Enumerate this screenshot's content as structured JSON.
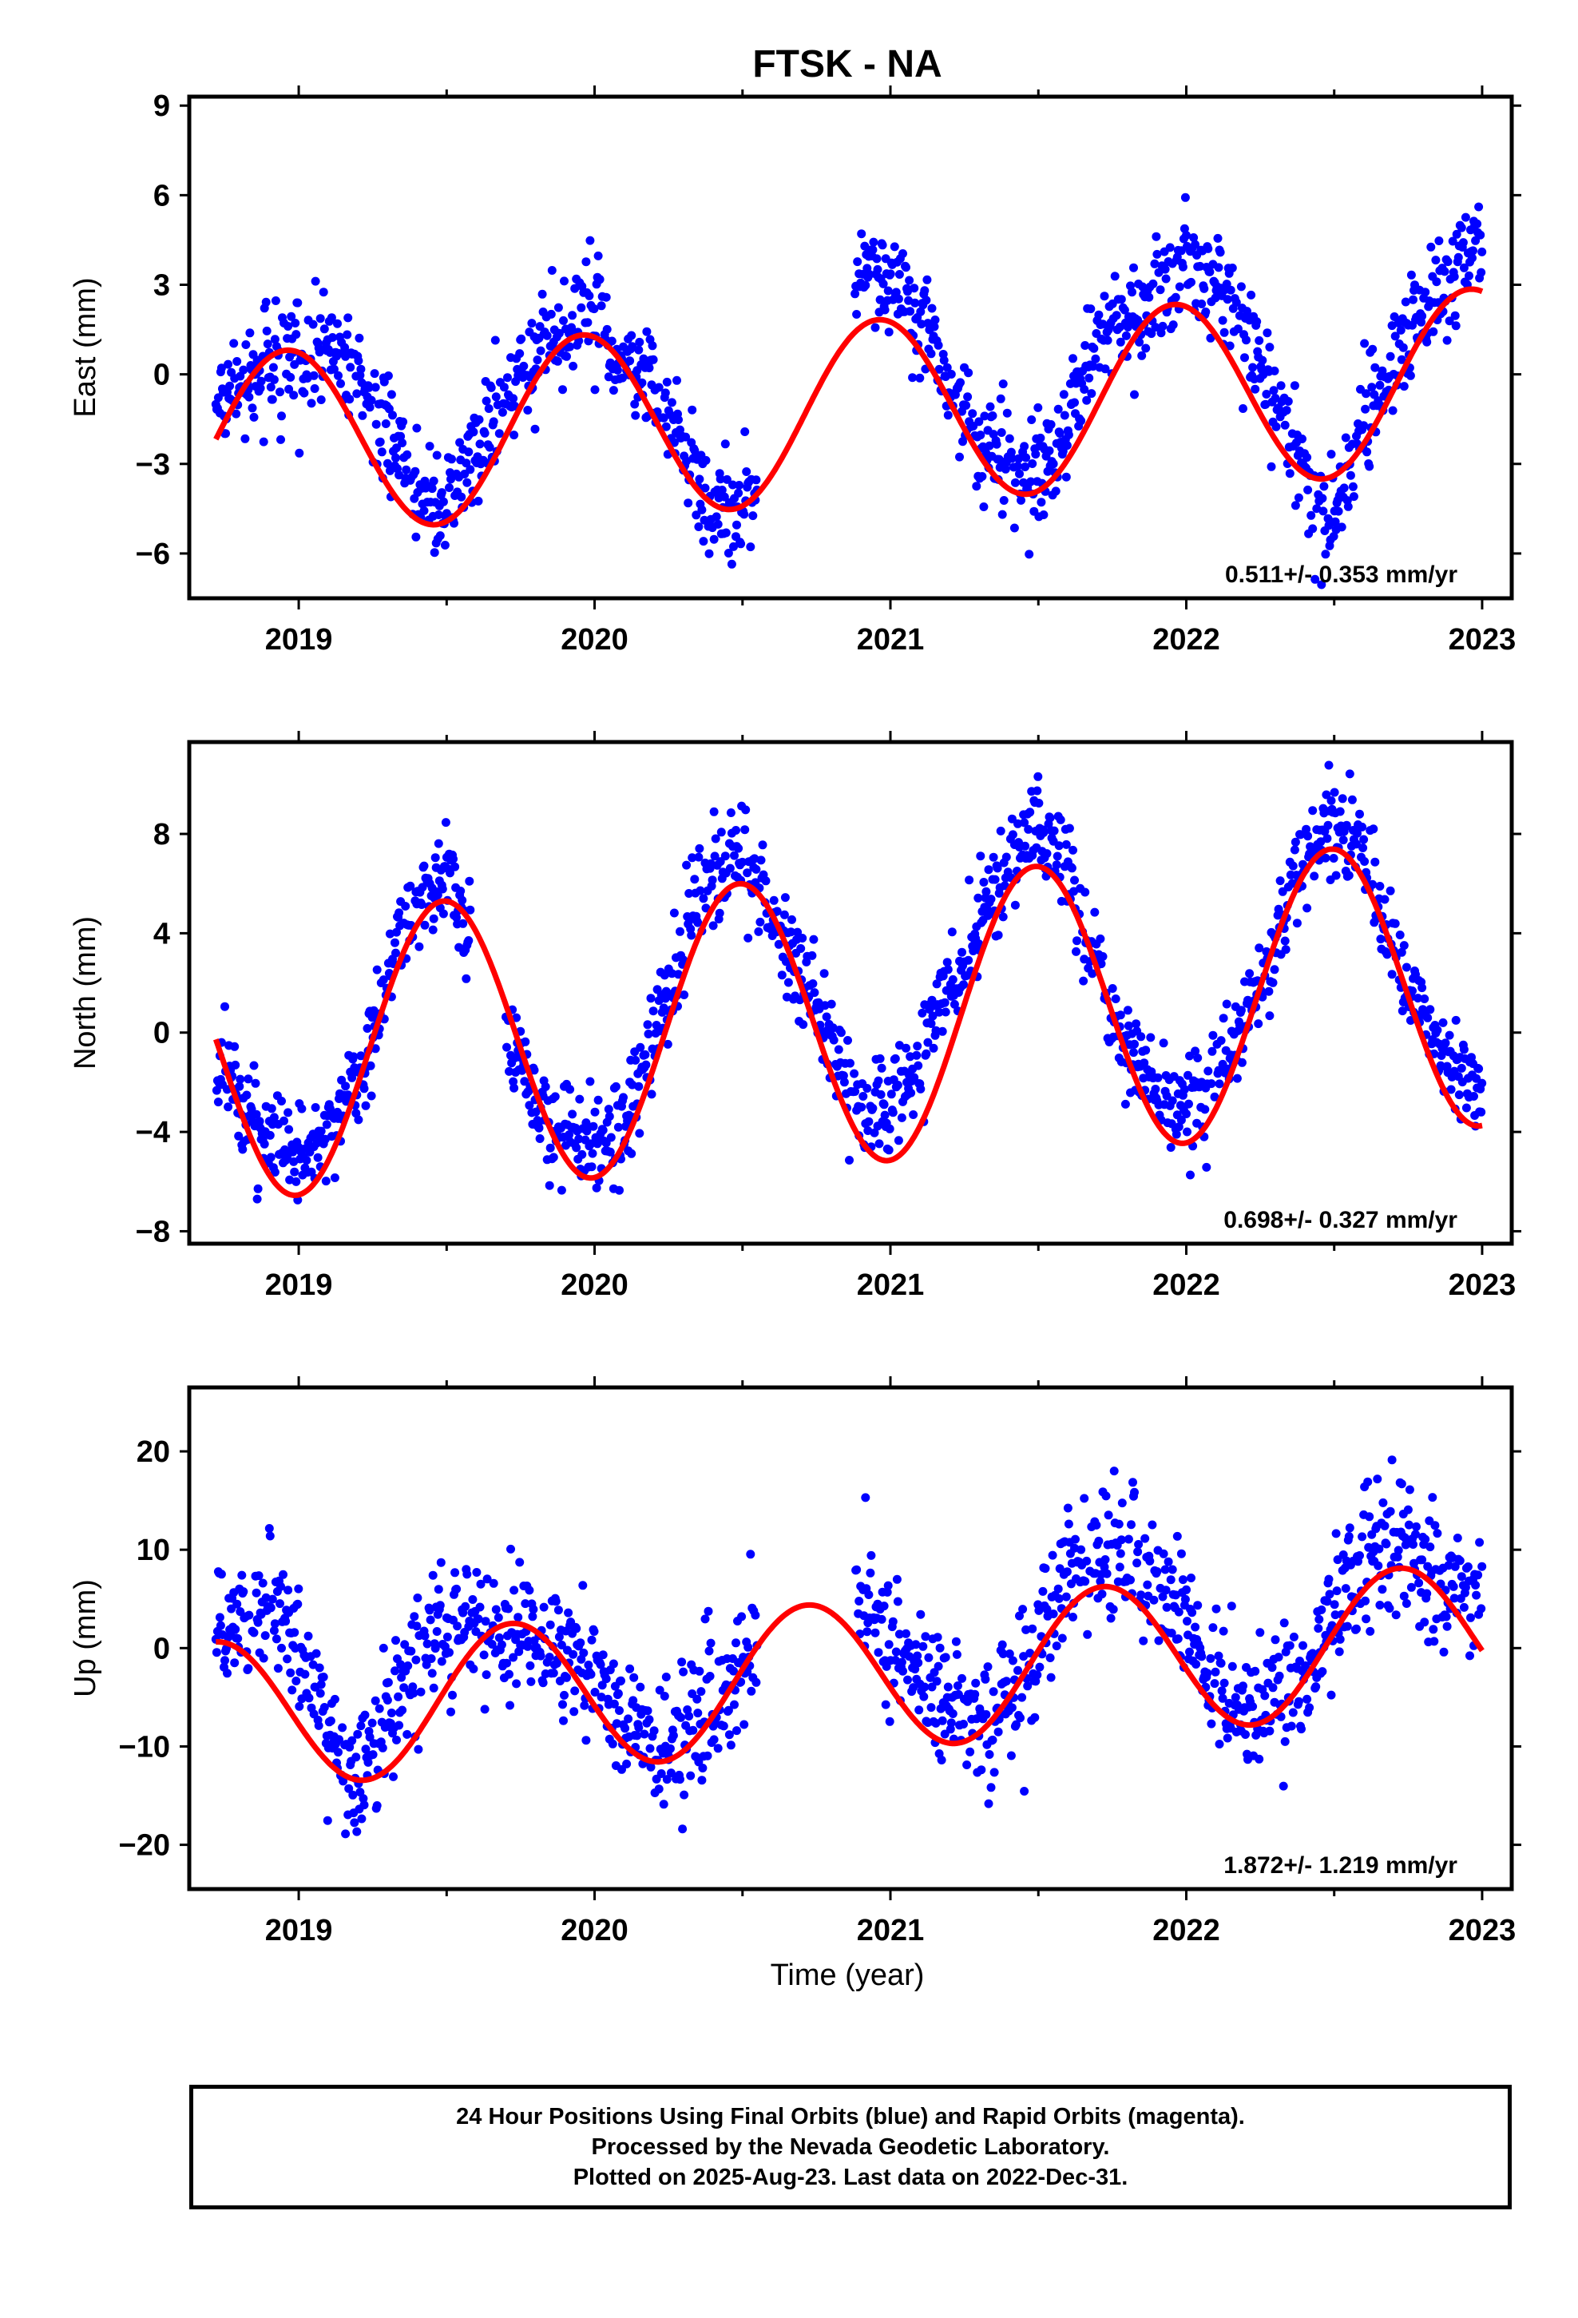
{
  "figure": {
    "title": "FTSK - NA",
    "xlabel": "Time (year)"
  },
  "footer": {
    "line1": "24 Hour Positions Using Final Orbits (blue) and Rapid Orbits (magenta).",
    "line2": "Processed by the Nevada Geodetic Laboratory.",
    "line3": "Plotted on 2025-Aug-23. Last data on 2022-Dec-31."
  },
  "colors": {
    "points": "#0000ff",
    "fit": "#ff0000",
    "frame": "#000000"
  },
  "chart_data": [
    {
      "type": "scatter",
      "ylabel": "East (mm)",
      "xlim": [
        2018.63,
        2023.1
      ],
      "ylim": [
        -7.5,
        9.3
      ],
      "xticks": [
        2019,
        2020,
        2021,
        2022,
        2023
      ],
      "yticks": [
        -6,
        -3,
        0,
        3,
        6,
        9
      ],
      "rate_label": "0.511+/- 0.353 mm/yr",
      "data_range": [
        2018.72,
        2023.0
      ],
      "gap": [
        2020.55,
        2020.88
      ],
      "series": [
        {
          "kind": "observations",
          "scatter_mm": 0.9,
          "x": [
            2018.75,
            2018.9,
            2019.0,
            2019.1,
            2019.2,
            2019.4,
            2019.5,
            2019.75,
            2019.9,
            2020.0,
            2020.1,
            2020.2,
            2020.3,
            2020.4,
            2020.5,
            2020.93,
            2021.0,
            2021.1,
            2021.2,
            2021.3,
            2021.4,
            2021.5,
            2021.6,
            2021.7,
            2021.8,
            2021.9,
            2022.0,
            2022.1,
            2022.2,
            2022.3,
            2022.4,
            2022.5,
            2022.6,
            2022.7,
            2022.8,
            2022.9,
            2023.0
          ],
          "y": [
            -1.0,
            0.5,
            0.5,
            1.0,
            0.0,
            -4.0,
            -4.5,
            0.0,
            2.0,
            2.0,
            0.5,
            -0.5,
            -2.5,
            -4.5,
            -4.5,
            3.5,
            3.0,
            2.0,
            -0.5,
            -2.0,
            -3.0,
            -3.5,
            -1.5,
            1.0,
            2.0,
            2.5,
            4.0,
            3.0,
            1.5,
            -0.5,
            -3.5,
            -5.0,
            -1.5,
            0.5,
            2.0,
            3.5,
            4.5
          ]
        },
        {
          "kind": "fit",
          "name": "",
          "offset": -1.2,
          "rate": 0.511,
          "amplitude": 3.05,
          "peak_phase": 0.96
        }
      ]
    },
    {
      "type": "scatter",
      "ylabel": "North (mm)",
      "xlim": [
        2018.63,
        2023.1
      ],
      "ylim": [
        -8.5,
        11.7
      ],
      "xticks": [
        2019,
        2020,
        2021,
        2022,
        2023
      ],
      "yticks": [
        -8,
        -4,
        0,
        4,
        8
      ],
      "rate_label": "0.698+/- 0.327 mm/yr",
      "data_range": [
        2018.72,
        2023.0
      ],
      "gap": [
        2019.58,
        2019.7
      ],
      "series": [
        {
          "kind": "observations",
          "scatter_mm": 1.0,
          "x": [
            2018.75,
            2018.9,
            2019.0,
            2019.1,
            2019.2,
            2019.35,
            2019.5,
            2019.75,
            2019.85,
            2020.0,
            2020.1,
            2020.25,
            2020.35,
            2020.5,
            2020.9,
            2021.0,
            2021.1,
            2021.25,
            2021.4,
            2021.5,
            2021.6,
            2021.75,
            2021.9,
            2022.0,
            2022.1,
            2022.25,
            2022.4,
            2022.5,
            2022.6,
            2022.75,
            2022.9,
            2023.0
          ],
          "y": [
            -1.5,
            -4.5,
            -5.0,
            -4.0,
            -2.0,
            4.5,
            6.5,
            -1.5,
            -4.0,
            -4.5,
            -3.5,
            1.5,
            5.5,
            7.5,
            -3.0,
            -3.0,
            -1.0,
            3.0,
            7.0,
            8.0,
            6.5,
            0.5,
            -2.5,
            -3.0,
            -1.5,
            2.0,
            7.0,
            8.5,
            7.0,
            2.0,
            -1.5,
            -2.5
          ]
        },
        {
          "kind": "fit",
          "name": "",
          "offset": 0.6,
          "rate": 0.698,
          "amplitude": 5.75,
          "peak_phase": 0.49
        }
      ]
    },
    {
      "type": "scatter",
      "ylabel": "Up (mm)",
      "xlim": [
        2018.63,
        2023.1
      ],
      "ylim": [
        -24.5,
        26.5
      ],
      "xticks": [
        2019,
        2020,
        2021,
        2022,
        2023
      ],
      "yticks": [
        -20,
        -10,
        0,
        10,
        20
      ],
      "rate_label": "1.872+/- 1.219 mm/yr",
      "data_range": [
        2018.72,
        2023.0
      ],
      "gap": [
        2020.55,
        2020.88
      ],
      "series": [
        {
          "kind": "observations",
          "scatter_mm": 3.4,
          "x": [
            2018.75,
            2018.9,
            2019.0,
            2019.1,
            2019.2,
            2019.4,
            2019.5,
            2019.75,
            2019.9,
            2020.0,
            2020.1,
            2020.25,
            2020.4,
            2020.5,
            2020.9,
            2021.0,
            2021.1,
            2021.25,
            2021.4,
            2021.5,
            2021.6,
            2021.75,
            2021.9,
            2022.0,
            2022.1,
            2022.25,
            2022.4,
            2022.5,
            2022.6,
            2022.75,
            2022.9,
            2023.0
          ],
          "y": [
            3.0,
            4.0,
            0.0,
            -8.0,
            -14.0,
            0.0,
            2.0,
            2.0,
            0.0,
            -2.0,
            -8.0,
            -10.0,
            -6.0,
            -2.0,
            5.0,
            0.0,
            -4.0,
            -7.0,
            -6.0,
            0.0,
            8.0,
            10.0,
            8.0,
            3.0,
            -4.0,
            -6.0,
            -3.0,
            3.0,
            10.0,
            10.0,
            6.0,
            6.0
          ]
        },
        {
          "kind": "fit",
          "name": "",
          "offset": -2.6,
          "rate": 1.872,
          "amplitude": 7.5,
          "peak_phase": 0.72
        }
      ]
    }
  ]
}
